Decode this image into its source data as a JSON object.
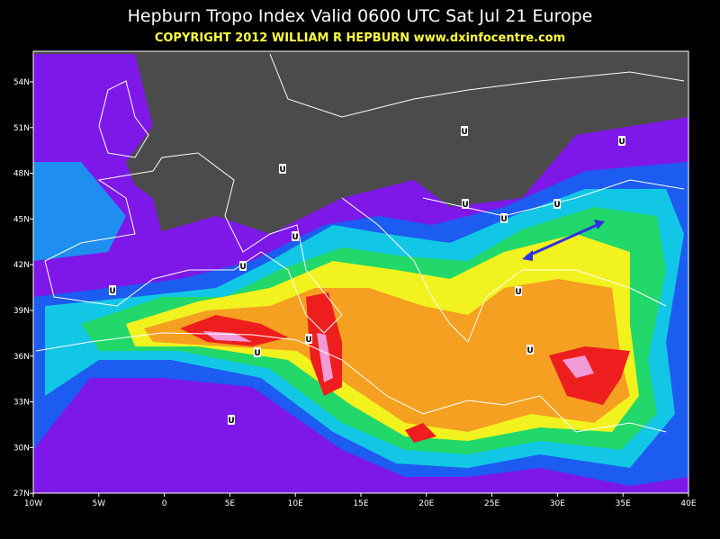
{
  "map": {
    "title": "Hepburn Tropo Index Valid 0600 UTC Sat Jul 21 Europe",
    "subtitle": "COPYRIGHT 2012   WILLIAM R HEPBURN   www.dxinfocentre.com",
    "lat_labels": [
      "54N",
      "51N",
      "48N",
      "45N",
      "42N",
      "39N",
      "36N",
      "33N",
      "30N",
      "27N"
    ],
    "lon_labels": [
      "10W",
      "5W",
      "0",
      "5E",
      "10E",
      "15E",
      "20E",
      "25E",
      "30E",
      "35E",
      "40E"
    ],
    "markers": [
      "U",
      "U",
      "U",
      "U",
      "U",
      "U",
      "U",
      "U",
      "U",
      "U",
      "U",
      "U",
      "U",
      "U"
    ]
  }
}
